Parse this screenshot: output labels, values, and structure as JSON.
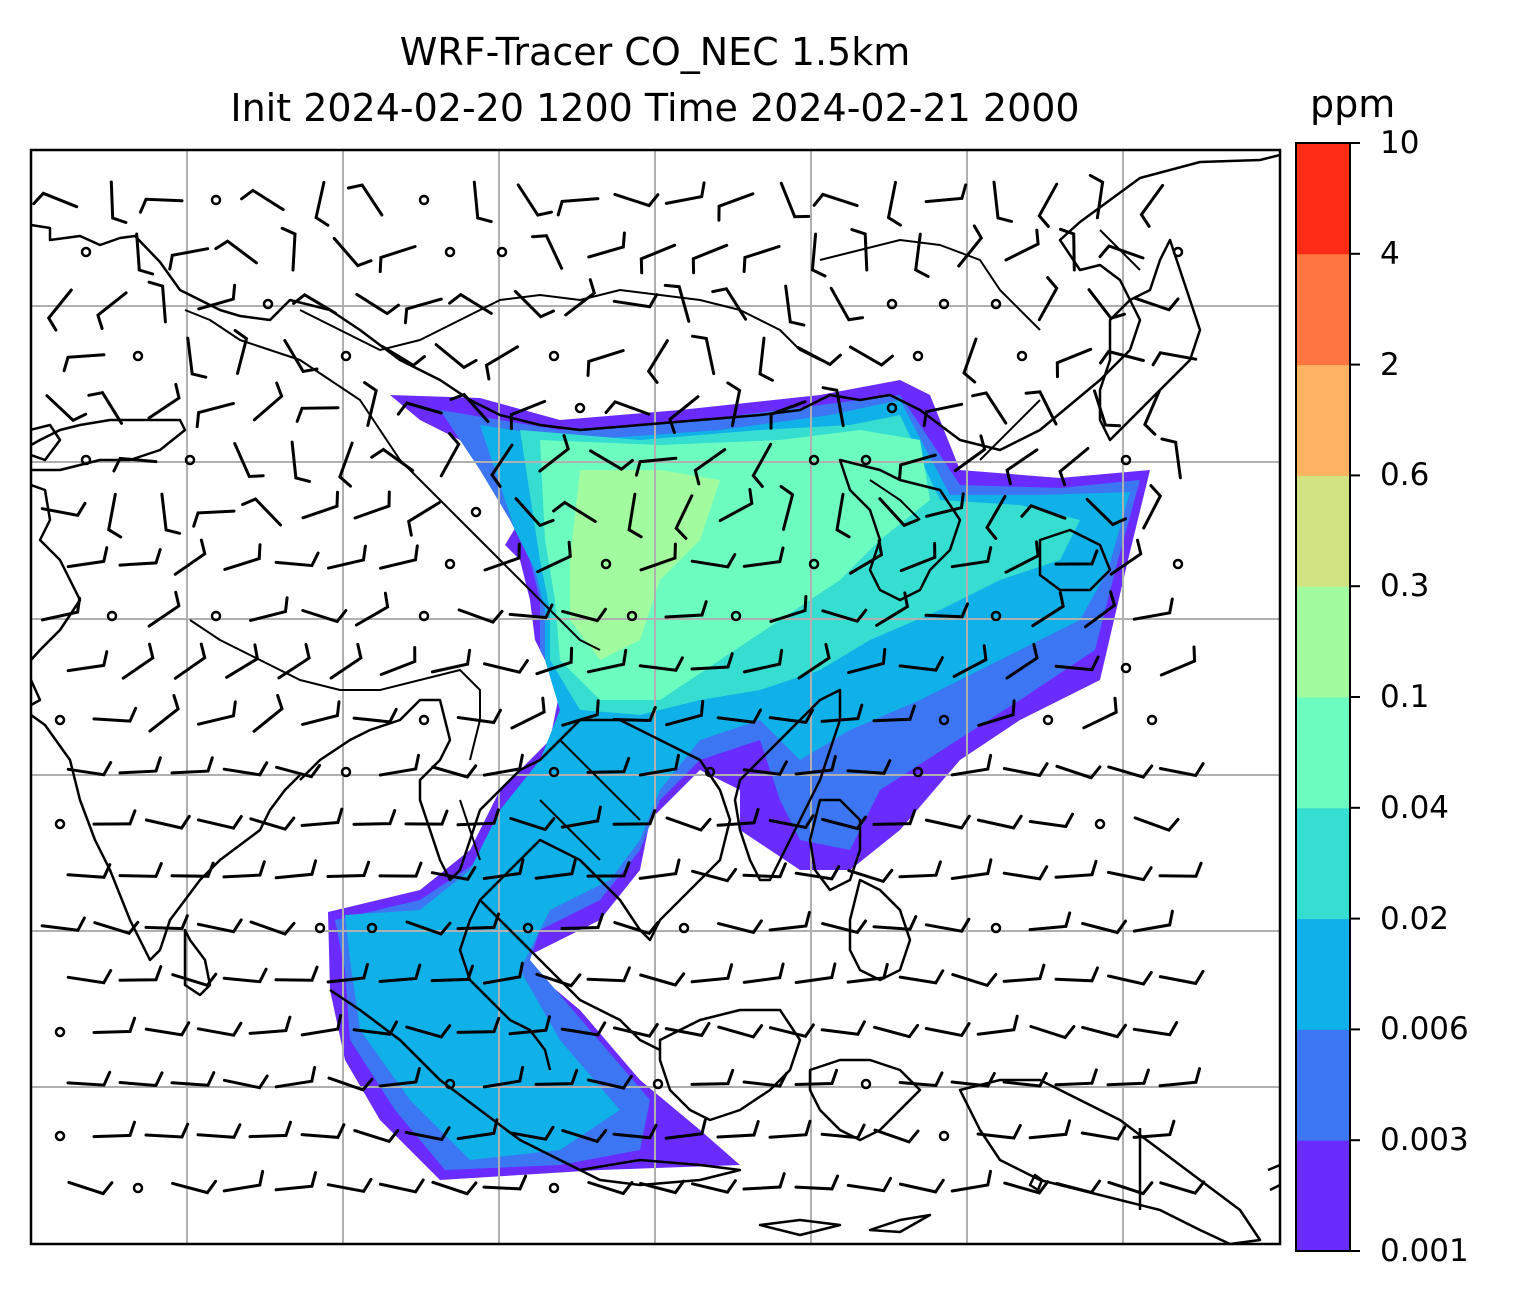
{
  "title": {
    "line1": "WRF-Tracer CO_NEC 1.5km",
    "line2": "Init 2024-02-20 1200 Time 2024-02-21 2000"
  },
  "colorbar": {
    "unit": "ppm",
    "ticks": [
      "0.001",
      "0.003",
      "0.006",
      "0.02",
      "0.04",
      "0.1",
      "0.3",
      "0.6",
      "2",
      "4",
      "10"
    ],
    "colors": [
      "#6a2bff",
      "#3c76f2",
      "#10b0e8",
      "#35ded0",
      "#6dfcc0",
      "#a2fb9e",
      "#d1e283",
      "#ffb261",
      "#ff7641",
      "#ff2b16"
    ]
  },
  "map": {
    "gridlines": true,
    "features": [
      "coastlines",
      "country-borders",
      "wind-barbs",
      "tracer-concentration"
    ]
  }
}
